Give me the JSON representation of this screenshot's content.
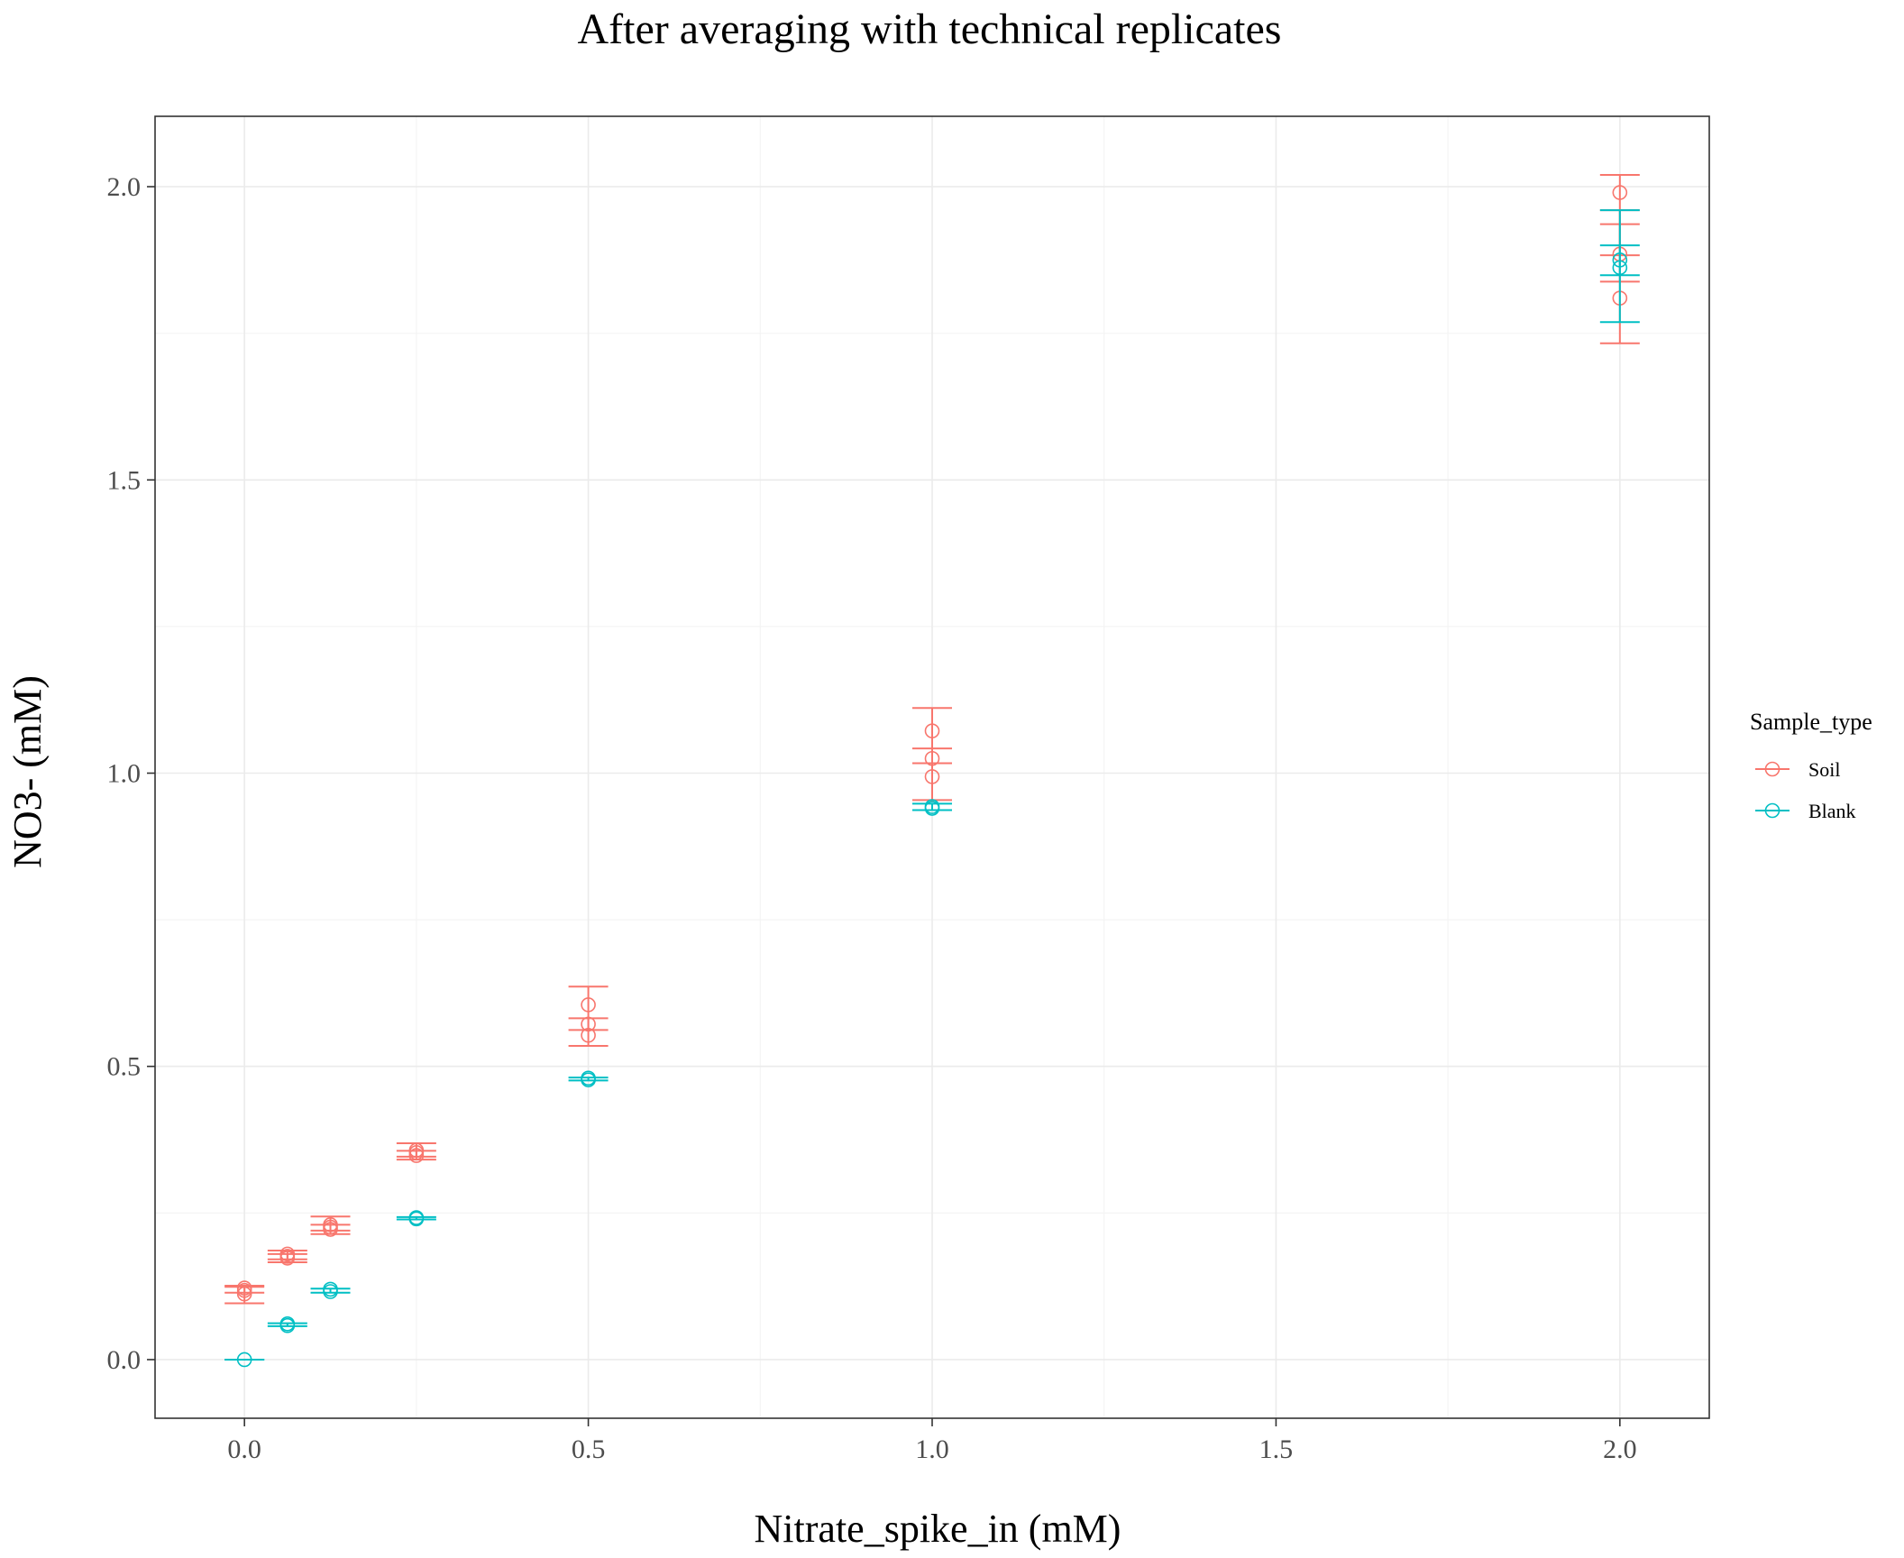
{
  "chart_data": {
    "type": "scatter",
    "title": "After averaging with technical replicates",
    "xlabel": "Nitrate_spike_in (mM)",
    "ylabel": "NO3- (mM)",
    "xlim": [
      -0.13,
      2.13
    ],
    "ylim": [
      -0.1,
      2.12
    ],
    "x_ticks": [
      0.0,
      0.5,
      1.0,
      1.5,
      2.0
    ],
    "x_tick_labels": [
      "0.0",
      "0.5",
      "1.0",
      "1.5",
      "2.0"
    ],
    "y_ticks": [
      0.0,
      0.5,
      1.0,
      1.5,
      2.0
    ],
    "y_tick_labels": [
      "0.0",
      "0.5",
      "1.0",
      "1.5",
      "2.0"
    ],
    "grid": true,
    "legend": {
      "title": "Sample_type",
      "position": "right",
      "entries": [
        {
          "label": "Soil",
          "color": "#F8766D"
        },
        {
          "label": "Blank",
          "color": "#00BFC4"
        }
      ]
    },
    "series": [
      {
        "name": "Soil",
        "color": "#F8766D",
        "points": [
          {
            "x": 0,
            "y": 0.118
          },
          {
            "x": 0,
            "y": 0.112
          },
          {
            "x": 0,
            "y": 0.122
          },
          {
            "x": 0.0625,
            "y": 0.176
          },
          {
            "x": 0.0625,
            "y": 0.18
          },
          {
            "x": 0.0625,
            "y": 0.173
          },
          {
            "x": 0.125,
            "y": 0.23
          },
          {
            "x": 0.125,
            "y": 0.222
          },
          {
            "x": 0.125,
            "y": 0.226
          },
          {
            "x": 0.25,
            "y": 0.357
          },
          {
            "x": 0.25,
            "y": 0.348
          },
          {
            "x": 0.25,
            "y": 0.353
          },
          {
            "x": 0.5,
            "y": 0.605
          },
          {
            "x": 0.5,
            "y": 0.572
          },
          {
            "x": 0.5,
            "y": 0.553
          },
          {
            "x": 1.0,
            "y": 1.072
          },
          {
            "x": 1.0,
            "y": 1.025
          },
          {
            "x": 1.0,
            "y": 0.994
          },
          {
            "x": 2.0,
            "y": 1.99
          },
          {
            "x": 2.0,
            "y": 1.885
          },
          {
            "x": 2.0,
            "y": 1.81
          }
        ],
        "errorbars": [
          {
            "x": 0,
            "ymin": 0.096,
            "ymax": 0.126
          },
          {
            "x": 0,
            "ymin": 0.114,
            "ymax": 0.124
          },
          {
            "x": 0.0625,
            "ymin": 0.166,
            "ymax": 0.186
          },
          {
            "x": 0.0625,
            "ymin": 0.171,
            "ymax": 0.18
          },
          {
            "x": 0.125,
            "ymin": 0.214,
            "ymax": 0.244
          },
          {
            "x": 0.125,
            "ymin": 0.22,
            "ymax": 0.23
          },
          {
            "x": 0.25,
            "ymin": 0.341,
            "ymax": 0.369
          },
          {
            "x": 0.25,
            "ymin": 0.346,
            "ymax": 0.356
          },
          {
            "x": 0.5,
            "ymin": 0.535,
            "ymax": 0.636
          },
          {
            "x": 0.5,
            "ymin": 0.562,
            "ymax": 0.582
          },
          {
            "x": 1.0,
            "ymin": 0.954,
            "ymax": 1.111
          },
          {
            "x": 1.0,
            "ymin": 1.017,
            "ymax": 1.042
          },
          {
            "x": 2.0,
            "ymin": 1.733,
            "ymax": 2.02
          },
          {
            "x": 2.0,
            "ymin": 1.838,
            "ymax": 1.936
          },
          {
            "x": 2.0,
            "ymin": 1.883,
            "ymax": 1.96
          }
        ]
      },
      {
        "name": "Blank",
        "color": "#00BFC4",
        "points": [
          {
            "x": 0,
            "y": 0.0
          },
          {
            "x": 0.0625,
            "y": 0.061
          },
          {
            "x": 0.0625,
            "y": 0.058
          },
          {
            "x": 0.125,
            "y": 0.12
          },
          {
            "x": 0.125,
            "y": 0.116
          },
          {
            "x": 0.25,
            "y": 0.242
          },
          {
            "x": 0.25,
            "y": 0.24
          },
          {
            "x": 0.5,
            "y": 0.48
          },
          {
            "x": 0.5,
            "y": 0.477
          },
          {
            "x": 1.0,
            "y": 0.943
          },
          {
            "x": 1.0,
            "y": 0.94
          },
          {
            "x": 2.0,
            "y": 1.875
          },
          {
            "x": 2.0,
            "y": 1.862
          }
        ],
        "errorbars": [
          {
            "x": 0,
            "ymin": 0.0,
            "ymax": 0.0
          },
          {
            "x": 0.0625,
            "ymin": 0.057,
            "ymax": 0.062
          },
          {
            "x": 0.125,
            "ymin": 0.114,
            "ymax": 0.121
          },
          {
            "x": 0.25,
            "ymin": 0.239,
            "ymax": 0.243
          },
          {
            "x": 0.5,
            "ymin": 0.476,
            "ymax": 0.481
          },
          {
            "x": 1.0,
            "ymin": 0.937,
            "ymax": 0.948
          },
          {
            "x": 2.0,
            "ymin": 1.769,
            "ymax": 1.96
          },
          {
            "x": 2.0,
            "ymin": 1.849,
            "ymax": 1.9
          }
        ]
      }
    ]
  }
}
